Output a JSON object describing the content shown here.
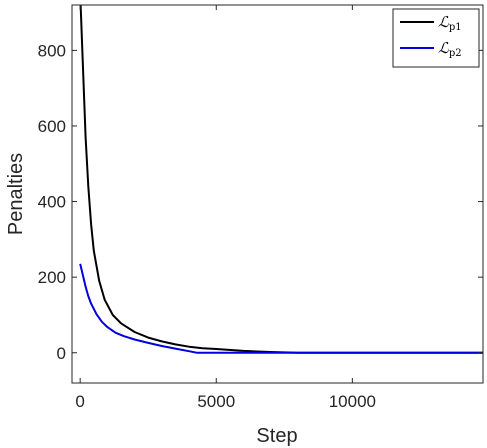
{
  "chart_data": {
    "type": "line",
    "title": "",
    "xlabel": "Step",
    "ylabel": "Penalties",
    "xlim": [
      -300,
      14800
    ],
    "ylim": [
      -80,
      920
    ],
    "xticks": [
      0,
      5000,
      10000
    ],
    "yticks": [
      0,
      200,
      400,
      600,
      800
    ],
    "xtick_labels": [
      "0",
      "5000",
      "10000"
    ],
    "ytick_labels": [
      "0",
      "200",
      "400",
      "600",
      "800"
    ],
    "grid": false,
    "legend_position": "top-right",
    "series": [
      {
        "name": "ℒp1",
        "script": "ℒ",
        "subscript": "p1",
        "color": "#000000",
        "x": [
          0,
          100,
          200,
          300,
          400,
          500,
          700,
          900,
          1200,
          1500,
          2000,
          2500,
          3000,
          3500,
          4000,
          4500,
          5000,
          6000,
          7000,
          8000,
          9000,
          10000,
          12000,
          14800
        ],
        "y": [
          950,
          760,
          570,
          440,
          340,
          270,
          190,
          140,
          100,
          78,
          55,
          40,
          30,
          22,
          16,
          12,
          10,
          5,
          2,
          0,
          0,
          0,
          0,
          0
        ]
      },
      {
        "name": "ℒp2",
        "script": "ℒ",
        "subscript": "p2",
        "color": "#0000dd",
        "x": [
          0,
          100,
          200,
          300,
          400,
          600,
          800,
          1000,
          1300,
          1600,
          2000,
          2500,
          3000,
          3500,
          4000,
          4300,
          5000,
          7000,
          10000,
          14800
        ],
        "y": [
          235,
          205,
          175,
          150,
          130,
          102,
          82,
          68,
          53,
          44,
          35,
          26,
          18,
          11,
          4,
          0,
          0,
          0,
          0,
          0
        ]
      }
    ]
  }
}
